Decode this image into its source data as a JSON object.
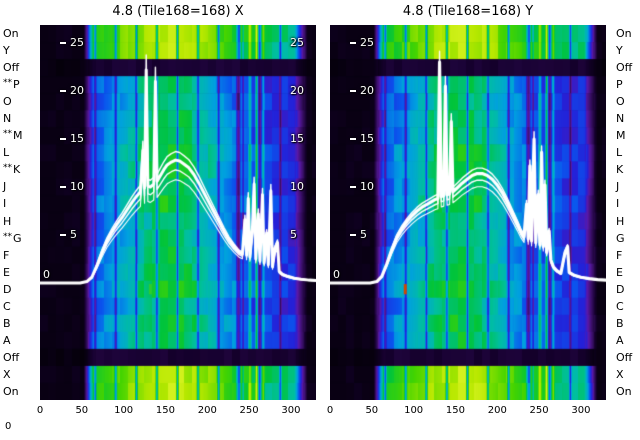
{
  "corner_label": "0",
  "chart_data": {
    "type": "heatmap_with_profile",
    "x_range": [
      0,
      330
    ],
    "x_axis_ticks": [
      0,
      50,
      100,
      150,
      200,
      250,
      300
    ],
    "y_axis_ticks": [
      25,
      20,
      15,
      10,
      5,
      0
    ],
    "rows": [
      {
        "label": "On",
        "band": "outer",
        "star": ""
      },
      {
        "label": "Y",
        "band": "outer",
        "star": ""
      },
      {
        "label": "Off",
        "band": "off",
        "star": ""
      },
      {
        "label": "P",
        "band": "inner",
        "star": "**"
      },
      {
        "label": "O",
        "band": "inner",
        "star": ""
      },
      {
        "label": "N",
        "band": "inner",
        "star": ""
      },
      {
        "label": "M",
        "band": "inner",
        "star": "**"
      },
      {
        "label": "L",
        "band": "inner",
        "star": ""
      },
      {
        "label": "K",
        "band": "inner",
        "star": "**"
      },
      {
        "label": "J",
        "band": "inner",
        "star": ""
      },
      {
        "label": "I",
        "band": "inner",
        "star": ""
      },
      {
        "label": "H",
        "band": "inner",
        "star": ""
      },
      {
        "label": "G",
        "band": "inner",
        "star": "**"
      },
      {
        "label": "F",
        "band": "inner",
        "star": ""
      },
      {
        "label": "E",
        "band": "inner",
        "star": ""
      },
      {
        "label": "D",
        "band": "inner",
        "star": ""
      },
      {
        "label": "C",
        "band": "inner",
        "star": ""
      },
      {
        "label": "B",
        "band": "inner",
        "star": ""
      },
      {
        "label": "A",
        "band": "inner",
        "star": ""
      },
      {
        "label": "Off",
        "band": "off",
        "star": ""
      },
      {
        "label": "X",
        "band": "outer",
        "star": ""
      },
      {
        "label": "On",
        "band": "outer",
        "star": ""
      }
    ],
    "colormap_stops": [
      [
        0.0,
        "#000000"
      ],
      [
        0.08,
        "#14002b"
      ],
      [
        0.16,
        "#3a0f68"
      ],
      [
        0.24,
        "#5a18a8"
      ],
      [
        0.3,
        "#2420d8"
      ],
      [
        0.38,
        "#0a55ee"
      ],
      [
        0.46,
        "#00a0e0"
      ],
      [
        0.56,
        "#00bfa0"
      ],
      [
        0.64,
        "#00c43c"
      ],
      [
        0.74,
        "#45d400"
      ],
      [
        0.86,
        "#b8e800"
      ],
      [
        1.0,
        "#fbff4a"
      ]
    ],
    "band_profiles": {
      "inner": {
        "base": 0.32,
        "amp": 0.32,
        "center": 155,
        "sigma": 72
      },
      "outer": {
        "base": 0.56,
        "amp": 0.32,
        "center": 155,
        "sigma": 85
      }
    },
    "envelope": {
      "x_on": 52,
      "rise": 12,
      "x_off": 304,
      "fall": 16
    },
    "stripes": {
      "start": 66,
      "period": 24.6,
      "half_width": 2.2,
      "depth": 0.45,
      "end": 294
    },
    "specials": [
      {
        "x": 251,
        "w": 2,
        "dv": 0.22
      },
      {
        "x": 259,
        "w": 1.5,
        "dv": 0.3
      },
      {
        "x": 267,
        "w": 1.5,
        "dv": 0.18
      },
      {
        "x": 236,
        "w": 2,
        "dv": -0.16
      },
      {
        "x": 243,
        "w": 1.5,
        "dv": -0.14
      }
    ],
    "plots": [
      {
        "axis": "X",
        "title": "4.8 (Tile168=168) X",
        "band_scales": [
          [
            1.0,
            3.0
          ],
          [
            0.92,
            1.4
          ],
          [
            1.07,
            1.4
          ],
          [
            0.84,
            1.1
          ]
        ],
        "markers": [
          {
            "x": 132,
            "row": 15,
            "color": "#2ecc2e"
          }
        ],
        "profile": [
          [
            0,
            0
          ],
          [
            48,
            0
          ],
          [
            56,
            0.15
          ],
          [
            62,
            0.6
          ],
          [
            68,
            1.8
          ],
          [
            74,
            3.2
          ],
          [
            80,
            4.4
          ],
          [
            86,
            5.3
          ],
          [
            92,
            6.1
          ],
          [
            98,
            6.8
          ],
          [
            104,
            7.6
          ],
          [
            110,
            8.4
          ],
          [
            116,
            9.1
          ],
          [
            120,
            9.5
          ],
          [
            123,
            13.8
          ],
          [
            125,
            9.9
          ],
          [
            127,
            22.2
          ],
          [
            129,
            10.1
          ],
          [
            132,
            10.0
          ],
          [
            136,
            10.3
          ],
          [
            138,
            21.0
          ],
          [
            140,
            10.6
          ],
          [
            144,
            11.2
          ],
          [
            148,
            11.8
          ],
          [
            152,
            12.3
          ],
          [
            157,
            12.6
          ],
          [
            162,
            12.8
          ],
          [
            167,
            12.7
          ],
          [
            172,
            12.4
          ],
          [
            178,
            12.0
          ],
          [
            184,
            11.3
          ],
          [
            190,
            10.4
          ],
          [
            196,
            9.4
          ],
          [
            202,
            8.4
          ],
          [
            208,
            7.4
          ],
          [
            214,
            6.4
          ],
          [
            220,
            5.4
          ],
          [
            226,
            4.5
          ],
          [
            232,
            3.8
          ],
          [
            238,
            3.2
          ],
          [
            242,
            3.0
          ],
          [
            245,
            6.6
          ],
          [
            247,
            2.9
          ],
          [
            249,
            8.8
          ],
          [
            251,
            2.7
          ],
          [
            254,
            5.6
          ],
          [
            256,
            10.3
          ],
          [
            258,
            2.5
          ],
          [
            261,
            7.2
          ],
          [
            263,
            2.3
          ],
          [
            266,
            9.2
          ],
          [
            268,
            2.1
          ],
          [
            271,
            5.2
          ],
          [
            273,
            1.9
          ],
          [
            276,
            9.6
          ],
          [
            278,
            1.7
          ],
          [
            281,
            3.6
          ],
          [
            284,
            4.2
          ],
          [
            286,
            1.2
          ],
          [
            290,
            0.9
          ],
          [
            296,
            0.7
          ],
          [
            304,
            0.5
          ],
          [
            312,
            0.4
          ],
          [
            322,
            0.3
          ],
          [
            330,
            0.25
          ]
        ]
      },
      {
        "axis": "Y",
        "title": "4.8 (Tile168=168) Y",
        "band_scales": [
          [
            1.0,
            3.2
          ],
          [
            0.94,
            1.5
          ],
          [
            1.05,
            1.4
          ],
          [
            0.88,
            1.1
          ]
        ],
        "markers": [
          {
            "x": 90,
            "row": 15,
            "color": "#cc4a00"
          }
        ],
        "profile": [
          [
            0,
            0
          ],
          [
            48,
            0
          ],
          [
            56,
            0.15
          ],
          [
            62,
            0.7
          ],
          [
            68,
            2.0
          ],
          [
            74,
            3.5
          ],
          [
            80,
            4.8
          ],
          [
            86,
            5.7
          ],
          [
            92,
            6.4
          ],
          [
            98,
            7.0
          ],
          [
            104,
            7.5
          ],
          [
            110,
            7.9
          ],
          [
            116,
            8.2
          ],
          [
            122,
            8.5
          ],
          [
            126,
            8.7
          ],
          [
            129,
            8.8
          ],
          [
            131,
            23.0
          ],
          [
            133,
            9.0
          ],
          [
            136,
            9.1
          ],
          [
            138,
            20.5
          ],
          [
            140,
            9.2
          ],
          [
            143,
            9.3
          ],
          [
            145,
            16.8
          ],
          [
            147,
            9.5
          ],
          [
            152,
            9.9
          ],
          [
            158,
            10.4
          ],
          [
            164,
            10.8
          ],
          [
            170,
            11.2
          ],
          [
            176,
            11.4
          ],
          [
            182,
            11.4
          ],
          [
            188,
            11.2
          ],
          [
            194,
            10.8
          ],
          [
            200,
            10.2
          ],
          [
            206,
            9.4
          ],
          [
            212,
            8.4
          ],
          [
            218,
            7.3
          ],
          [
            224,
            6.2
          ],
          [
            228,
            5.4
          ],
          [
            232,
            4.8
          ],
          [
            235,
            8.2
          ],
          [
            237,
            4.6
          ],
          [
            239,
            12.2
          ],
          [
            241,
            4.4
          ],
          [
            244,
            15.0
          ],
          [
            246,
            4.2
          ],
          [
            249,
            9.2
          ],
          [
            251,
            4.0
          ],
          [
            253,
            13.6
          ],
          [
            255,
            3.8
          ],
          [
            257,
            10.2
          ],
          [
            259,
            3.2
          ],
          [
            262,
            5.4
          ],
          [
            264,
            2.4
          ],
          [
            267,
            1.7
          ],
          [
            271,
            1.3
          ],
          [
            276,
            1.0
          ],
          [
            281,
            3.2
          ],
          [
            284,
            3.8
          ],
          [
            286,
            1.1
          ],
          [
            292,
            0.8
          ],
          [
            300,
            0.6
          ],
          [
            310,
            0.45
          ],
          [
            320,
            0.35
          ],
          [
            330,
            0.3
          ]
        ]
      }
    ]
  }
}
